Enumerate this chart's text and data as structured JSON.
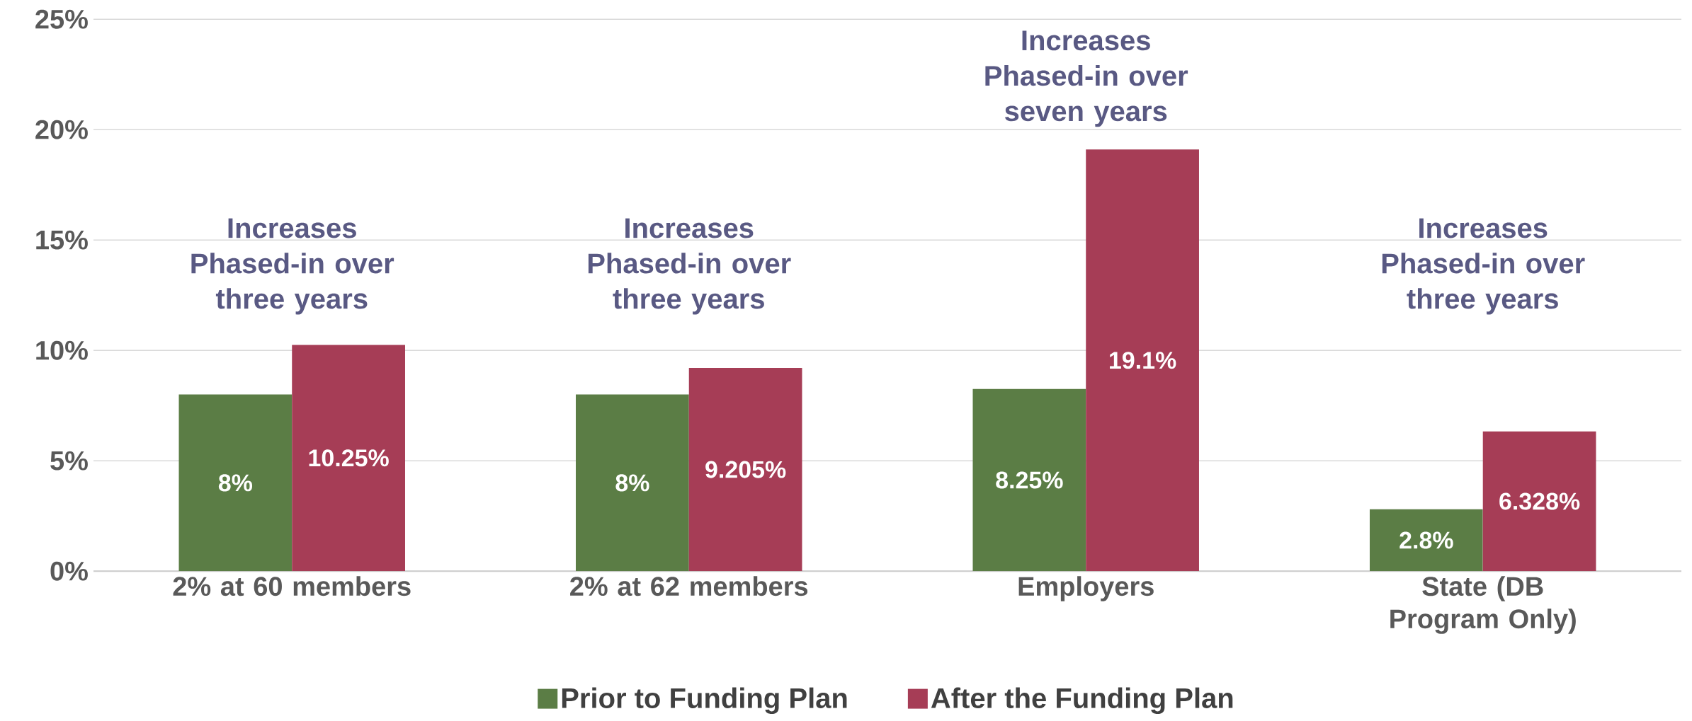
{
  "chart_data": {
    "type": "bar",
    "categories": [
      "2% at 60 members",
      "2% at 62 members",
      "Employers",
      "State (DB Program Only)"
    ],
    "series": [
      {
        "name": "Prior to Funding Plan",
        "color": "#5b7d45",
        "values": [
          8,
          8,
          8.25,
          2.8
        ],
        "value_labels": [
          "8%",
          "8%",
          "8.25%",
          "2.8%"
        ]
      },
      {
        "name": "After the Funding Plan",
        "color": "#a63d56",
        "values": [
          10.25,
          9.205,
          19.1,
          6.328
        ],
        "value_labels": [
          "10.25%",
          "9.205%",
          "19.1%",
          "6.328%"
        ]
      }
    ],
    "ylim": [
      0,
      25
    ],
    "yticks": [
      {
        "value": 0,
        "label": "0%"
      },
      {
        "value": 5,
        "label": "5%"
      },
      {
        "value": 10,
        "label": "10%"
      },
      {
        "value": 15,
        "label": "15%"
      },
      {
        "value": 20,
        "label": "20%"
      },
      {
        "value": 25,
        "label": "25%"
      }
    ],
    "grid": "y",
    "legend": "bottom",
    "annotations": [
      "Increases Phased-in over three years",
      "Increases Phased-in over three years",
      "Increases Phased-in over seven years",
      "Increases Phased-in over three years"
    ]
  }
}
